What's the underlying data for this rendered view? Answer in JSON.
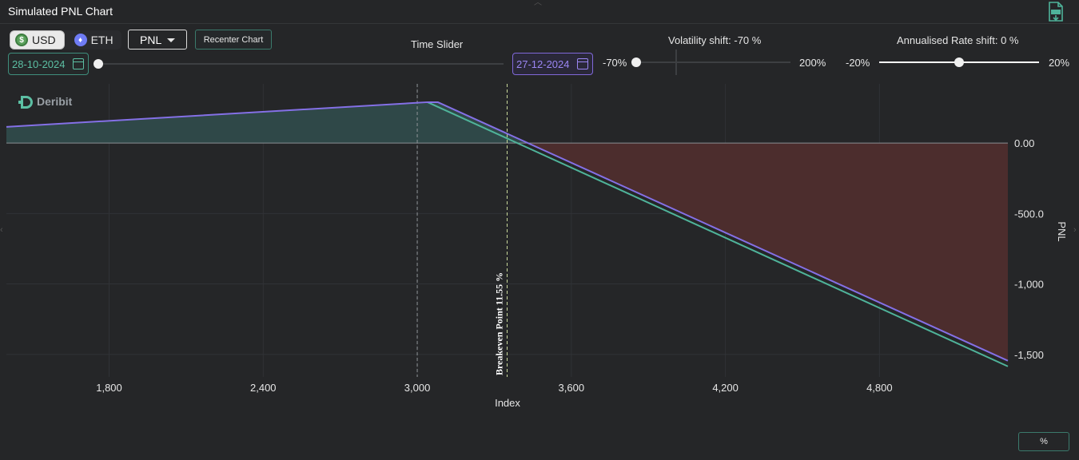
{
  "window": {
    "title": "Simulated PNL Chart"
  },
  "toolbar": {
    "currency_usd": "USD",
    "currency_eth": "ETH",
    "metric_select": "PNL",
    "recenter_label": "Recenter Chart",
    "usd_coin_glyph": "$",
    "eth_coin_glyph": "♦"
  },
  "time_slider": {
    "label": "Time Slider",
    "start_date": "28-10-2024",
    "end_date": "27-12-2024",
    "value_fraction": 0.0
  },
  "volatility": {
    "label": "Volatility shift: -70 %",
    "min_label": "-70%",
    "max_label": "200%",
    "value": -70
  },
  "rate": {
    "label": "Annualised Rate shift: 0 %",
    "min_label": "-20%",
    "max_label": "20%",
    "value": 0
  },
  "percent_button": "%",
  "logo": {
    "text": "Deribit",
    "color": "#5cbfa3"
  },
  "colors": {
    "purple": "#8470e6",
    "green": "#4fb39a",
    "profit_fill": "#2f4a4a",
    "loss_fill": "#4e2d2d",
    "grid": "#303236"
  },
  "chart_data": {
    "type": "line",
    "xlabel": "Index",
    "ylabel": "PNL",
    "x_ticks": [
      "1,800",
      "2,400",
      "3,000",
      "3,600",
      "4,200",
      "4,800"
    ],
    "x_tick_values": [
      1800,
      2400,
      3000,
      3600,
      4200,
      4800
    ],
    "y_ticks": [
      "0.00",
      "-500.0",
      "-1,000",
      "-1,500"
    ],
    "y_tick_values": [
      0,
      -500,
      -1000,
      -1500
    ],
    "xlim": [
      1400,
      5300
    ],
    "ylim": [
      -1660,
      420
    ],
    "grid": true,
    "breakeven_label": "Breakeven Point 11.55 %",
    "breakeven_x": 3350,
    "strike_line_x": 3000,
    "series": [
      {
        "color": "#8470e6",
        "points": [
          [
            1400,
            115
          ],
          [
            3040,
            290
          ],
          [
            3080,
            290
          ],
          [
            5300,
            -1545
          ]
        ]
      },
      {
        "color": "#4fb39a",
        "points": [
          [
            3040,
            290
          ],
          [
            5300,
            -1585
          ]
        ]
      }
    ]
  }
}
